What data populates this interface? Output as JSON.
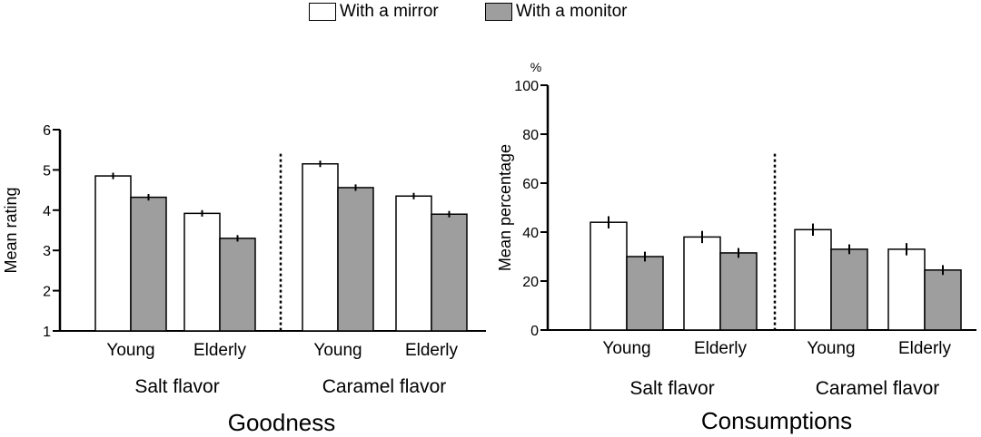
{
  "legend": {
    "mirror": {
      "label": "With a mirror",
      "color": "#ffffff"
    },
    "monitor": {
      "label": "With a monitor",
      "color": "#9e9e9e"
    }
  },
  "chart_data": [
    {
      "type": "bar",
      "title": "Goodness",
      "xlabel": "",
      "ylabel": "Mean rating",
      "unit": "",
      "ylim": [
        1,
        6
      ],
      "yticks": [
        1,
        2,
        3,
        4,
        5,
        6
      ],
      "groups": [
        {
          "label": "Salt flavor",
          "categories": [
            "Young",
            "Elderly"
          ]
        },
        {
          "label": "Caramel flavor",
          "categories": [
            "Young",
            "Elderly"
          ]
        }
      ],
      "categories": [
        "Young",
        "Elderly",
        "Young",
        "Elderly"
      ],
      "series": [
        {
          "name": "With a mirror",
          "values": [
            4.85,
            3.92,
            5.15,
            4.35
          ],
          "errors": [
            0.08,
            0.08,
            0.08,
            0.08
          ]
        },
        {
          "name": "With a monitor",
          "values": [
            4.32,
            3.3,
            4.56,
            3.9
          ],
          "errors": [
            0.08,
            0.08,
            0.08,
            0.08
          ]
        }
      ]
    },
    {
      "type": "bar",
      "title": "Consumptions",
      "xlabel": "",
      "ylabel": "Mean percentage",
      "unit": "%",
      "ylim": [
        0,
        100
      ],
      "yticks": [
        0,
        20,
        40,
        60,
        80,
        100
      ],
      "groups": [
        {
          "label": "Salt flavor",
          "categories": [
            "Young",
            "Elderly"
          ]
        },
        {
          "label": "Caramel flavor",
          "categories": [
            "Young",
            "Elderly"
          ]
        }
      ],
      "categories": [
        "Young",
        "Elderly",
        "Young",
        "Elderly"
      ],
      "series": [
        {
          "name": "With a mirror",
          "values": [
            44,
            38,
            41,
            33
          ],
          "errors": [
            2.5,
            2.5,
            2.5,
            2.5
          ]
        },
        {
          "name": "With a monitor",
          "values": [
            30,
            31.5,
            33,
            24.5
          ],
          "errors": [
            2,
            2,
            2,
            2
          ]
        }
      ]
    }
  ]
}
